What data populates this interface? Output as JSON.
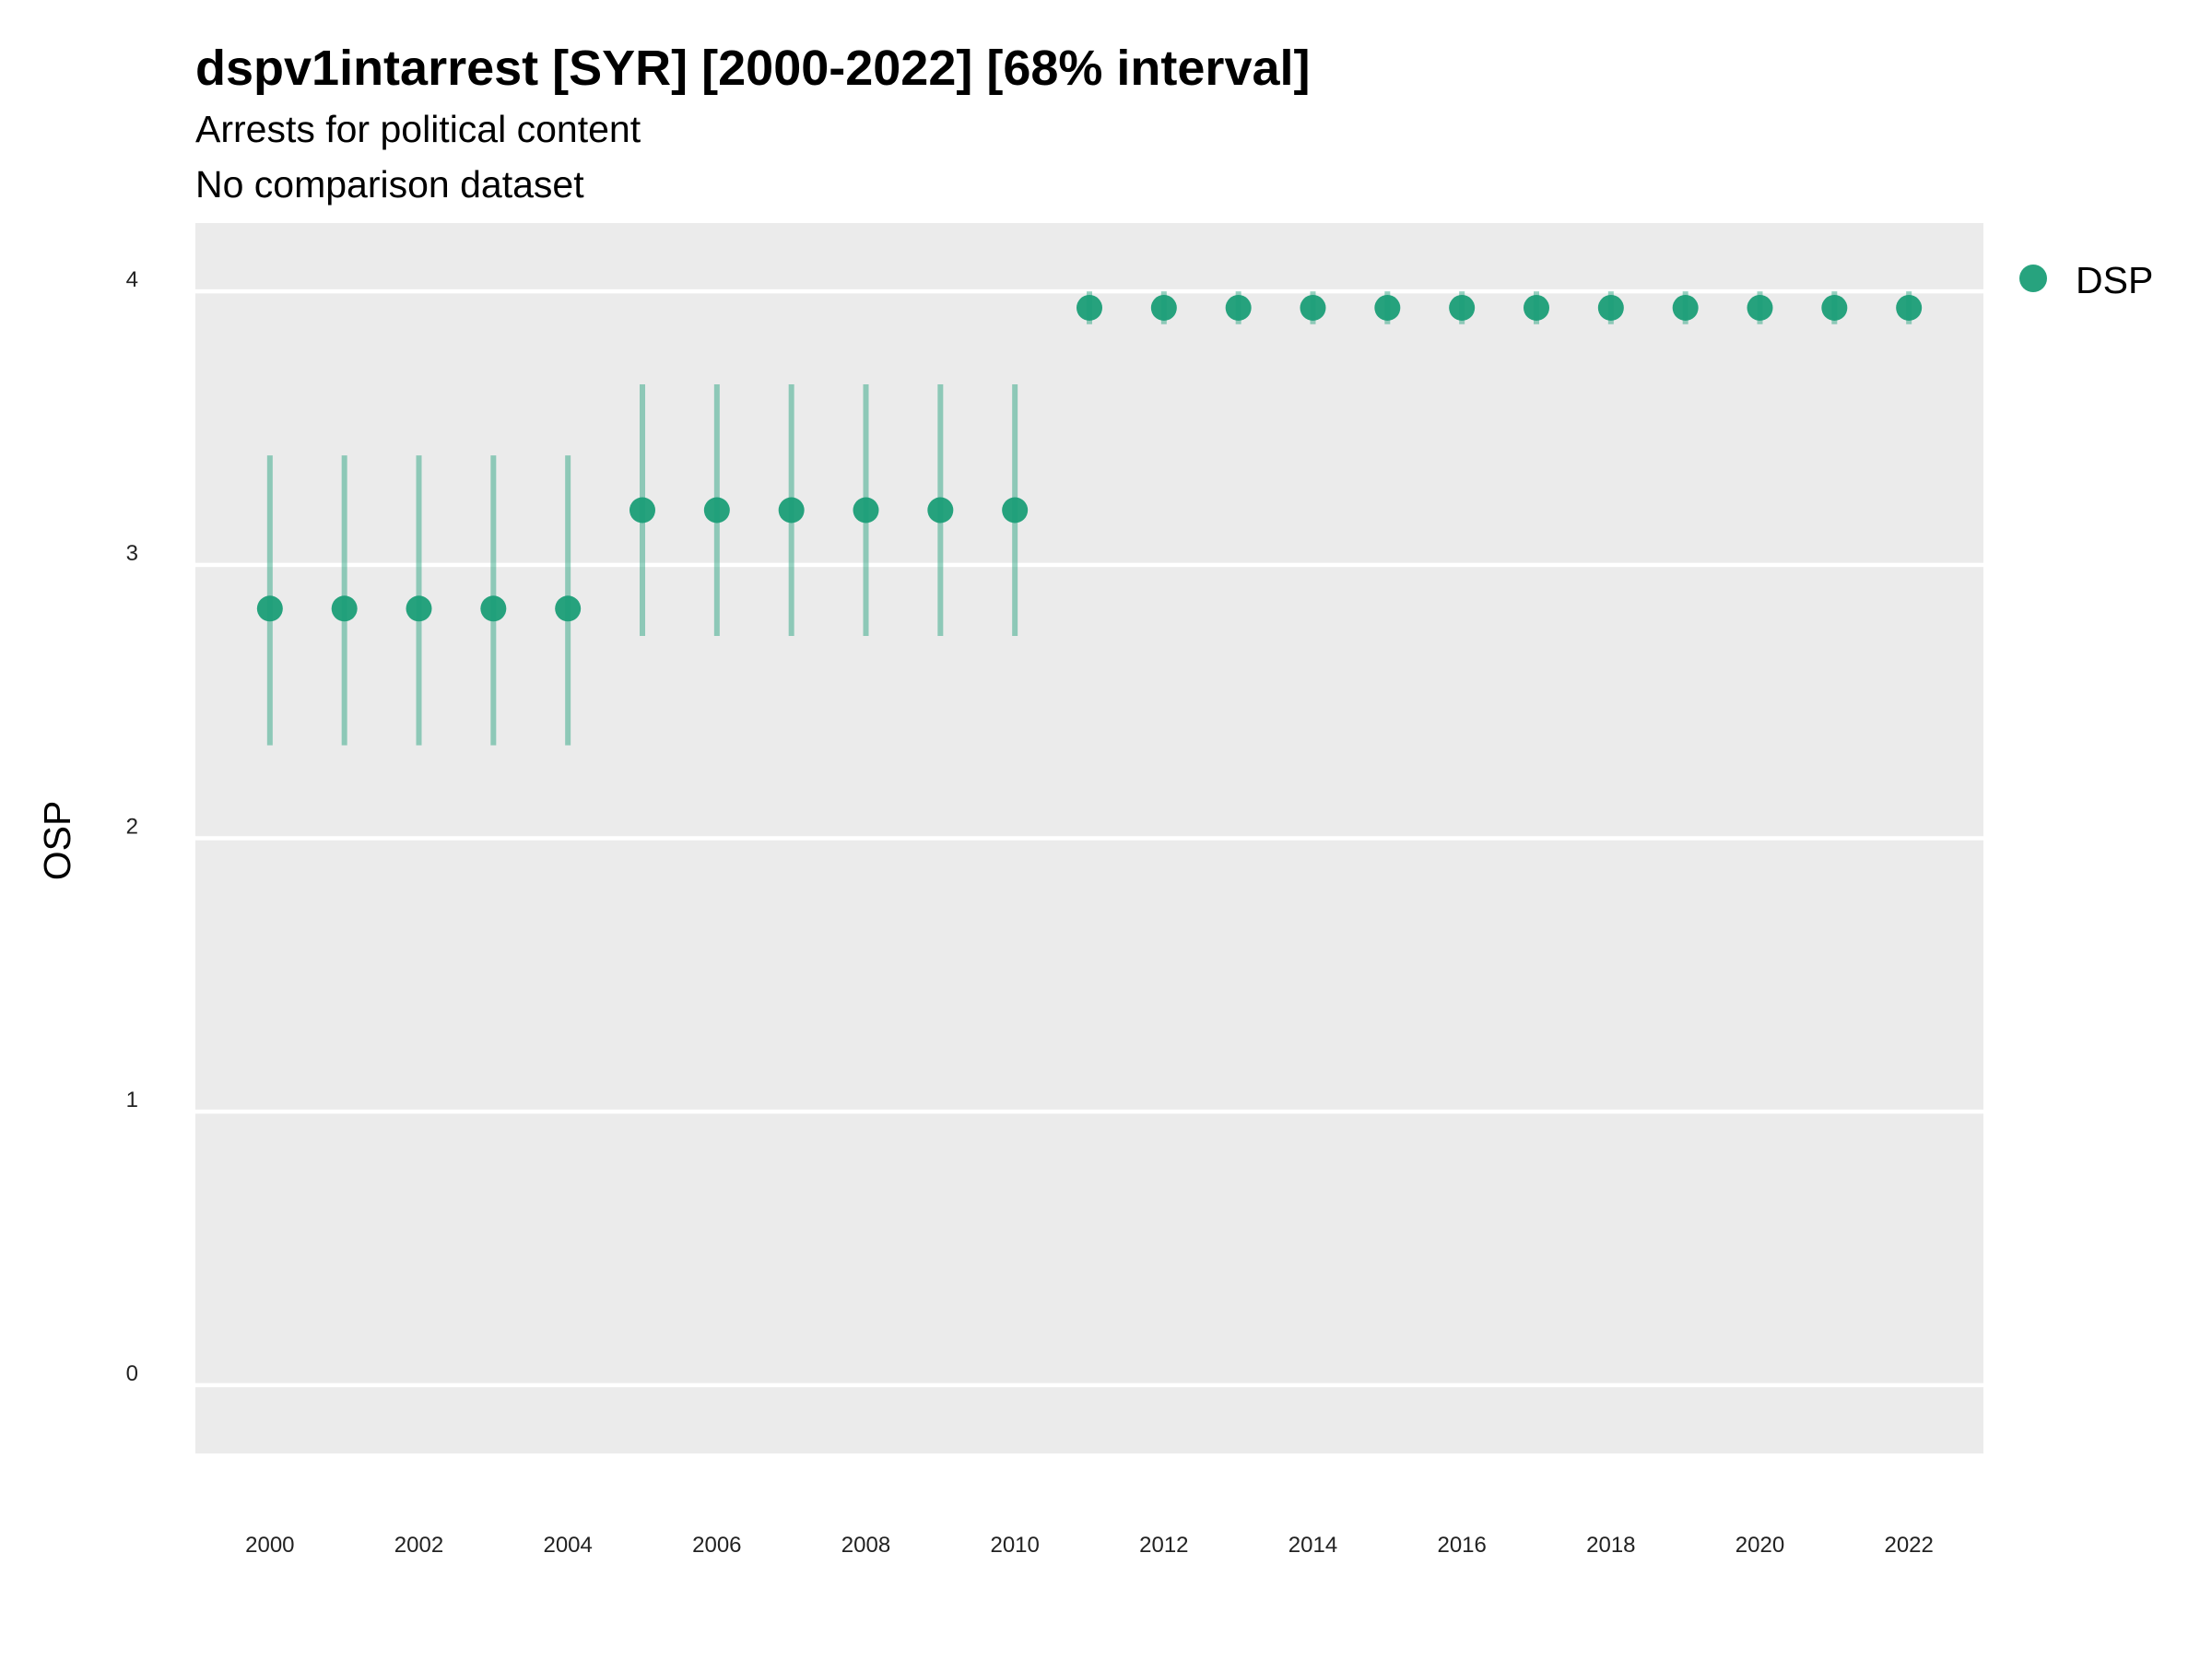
{
  "chart_data": {
    "type": "scatter",
    "title": "dspv1intarrest [SYR] [2000-2022] [68% interval]",
    "subtitle": "Arrests for political content",
    "subtitle2": "No comparison dataset",
    "xlabel": "",
    "ylabel": "OSP",
    "ylim": [
      -0.25,
      4.25
    ],
    "xlim": [
      1999,
      2023
    ],
    "yticks": [
      0,
      1,
      2,
      3,
      4
    ],
    "xticks": [
      2000,
      2002,
      2004,
      2006,
      2008,
      2010,
      2012,
      2014,
      2016,
      2018,
      2020,
      2022
    ],
    "grid": true,
    "legend_position": "right",
    "series": [
      {
        "name": "DSP",
        "color": "#1b9e77",
        "x": [
          2000,
          2001,
          2002,
          2003,
          2004,
          2005,
          2006,
          2007,
          2008,
          2009,
          2010,
          2011,
          2012,
          2013,
          2014,
          2015,
          2016,
          2017,
          2018,
          2019,
          2020,
          2021,
          2022
        ],
        "values": [
          2.84,
          2.84,
          2.84,
          2.84,
          2.84,
          3.2,
          3.2,
          3.2,
          3.2,
          3.2,
          3.2,
          3.94,
          3.94,
          3.94,
          3.94,
          3.94,
          3.94,
          3.94,
          3.94,
          3.94,
          3.94,
          3.94,
          3.94
        ],
        "lower": [
          2.34,
          2.34,
          2.34,
          2.34,
          2.34,
          2.74,
          2.74,
          2.74,
          2.74,
          2.74,
          2.74,
          3.88,
          3.88,
          3.88,
          3.88,
          3.88,
          3.88,
          3.88,
          3.88,
          3.88,
          3.88,
          3.88,
          3.88
        ],
        "upper": [
          3.4,
          3.4,
          3.4,
          3.4,
          3.4,
          3.66,
          3.66,
          3.66,
          3.66,
          3.66,
          3.66,
          4.0,
          4.0,
          4.0,
          4.0,
          4.0,
          4.0,
          4.0,
          4.0,
          4.0,
          4.0,
          4.0,
          4.0
        ]
      }
    ]
  }
}
